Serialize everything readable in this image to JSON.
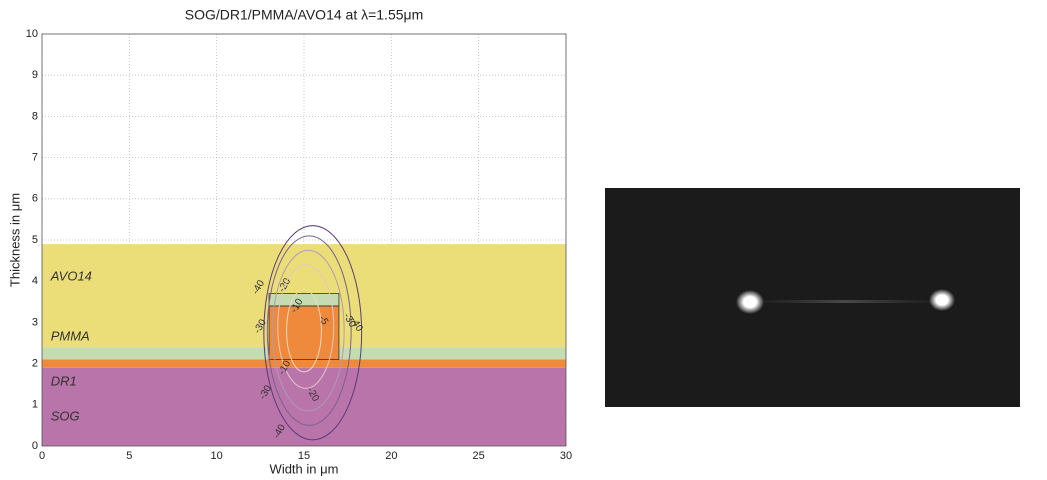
{
  "chart_data": {
    "type": "contour",
    "title": "SOG/DR1/PMMA/AVO14 at λ=1.55μm",
    "x_label": "Width in μm",
    "y_label": "Thickness in μm",
    "xlim": [
      0,
      30
    ],
    "ylim": [
      0,
      10
    ],
    "xticks": [
      0,
      5,
      10,
      15,
      20,
      25,
      30
    ],
    "yticks": [
      0,
      1,
      2,
      3,
      4,
      5,
      6,
      7,
      8,
      9,
      10
    ],
    "grid": true,
    "regions": [
      {
        "label": "SOG",
        "x": [
          0,
          30
        ],
        "y": [
          0,
          1.9
        ],
        "color": "#b974a9"
      },
      {
        "label": "DR1",
        "x": [
          0,
          30
        ],
        "y": [
          1.9,
          2.1
        ],
        "color": "#ef8a3c"
      },
      {
        "label": "PMMA",
        "x": [
          0,
          30
        ],
        "y": [
          2.1,
          2.4
        ],
        "color": "#c5dcb3"
      },
      {
        "label": "AVO14",
        "x": [
          0,
          30
        ],
        "y": [
          2.4,
          4.9
        ],
        "color": "#ebde78"
      },
      {
        "x": [
          13,
          17
        ],
        "y": [
          2.1,
          3.4
        ],
        "color": "#ef8a3c"
      },
      {
        "x": [
          13,
          17
        ],
        "y": [
          3.4,
          3.7
        ],
        "color": "#c5dcb3"
      }
    ],
    "contours": [
      {
        "level": -40,
        "cx": 15.5,
        "cy": 2.75,
        "rx": 2.8,
        "ry": 2.6,
        "color": "#5a3a7a",
        "labels": [
          [
            12.4,
            3.85
          ],
          [
            18.0,
            2.95
          ],
          [
            13.6,
            0.35
          ]
        ]
      },
      {
        "level": -30,
        "cx": 15.3,
        "cy": 2.8,
        "rx": 2.4,
        "ry": 2.3,
        "color": "#7a6090",
        "labels": [
          [
            12.5,
            2.9
          ],
          [
            17.6,
            3.05
          ],
          [
            12.8,
            1.3
          ]
        ]
      },
      {
        "level": -20,
        "cx": 15.25,
        "cy": 2.8,
        "rx": 2.05,
        "ry": 1.95,
        "color": "#b09ab8",
        "labels": [
          [
            13.9,
            3.9
          ],
          [
            15.5,
            1.25
          ]
        ]
      },
      {
        "level": -10,
        "cx": 15.1,
        "cy": 2.9,
        "rx": 1.6,
        "ry": 1.5,
        "color": "#e0c8c8",
        "labels": [
          [
            14.6,
            3.4
          ],
          [
            13.9,
            1.9
          ]
        ]
      },
      {
        "level": -5,
        "cx": 15.0,
        "cy": 2.8,
        "rx": 1.0,
        "ry": 1.0,
        "color": "#f2d8c0",
        "labels": [
          [
            16.1,
            3.05
          ]
        ]
      }
    ]
  }
}
